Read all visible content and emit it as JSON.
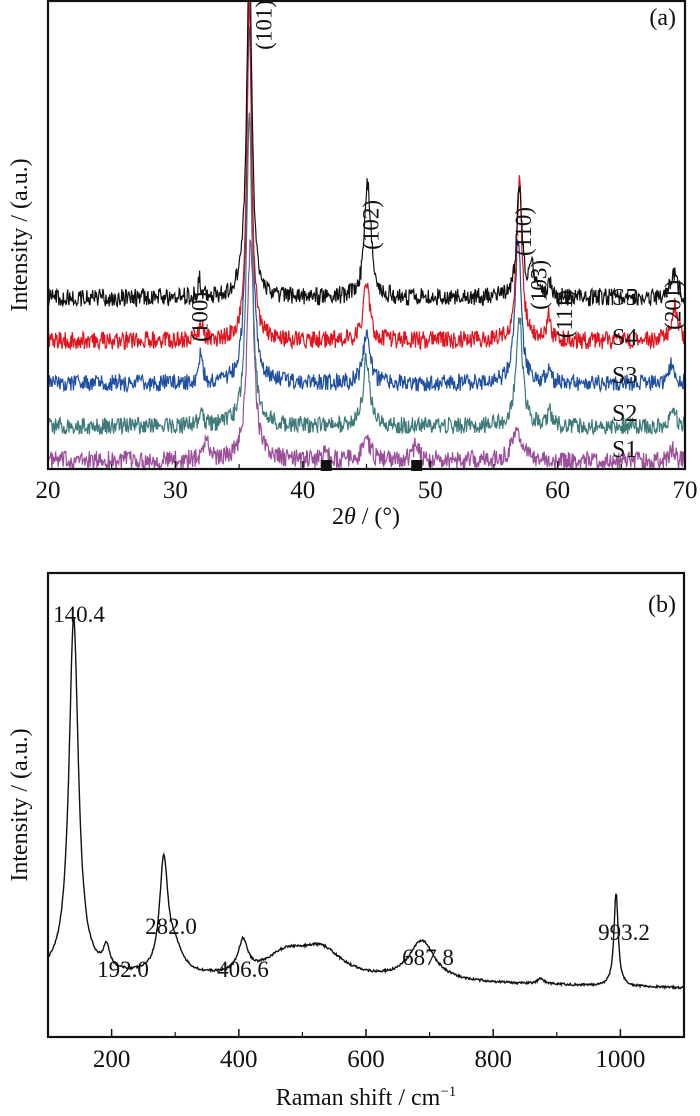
{
  "chart_data": [
    {
      "type": "line",
      "panel": "(a)",
      "xlabel_prefix": "2",
      "xlabel_theta": "θ",
      "xlabel_suffix": " / (°)",
      "ylabel": "Intensity / (a.u.)",
      "xlim": [
        20,
        70
      ],
      "xticks": [
        20,
        30,
        40,
        50,
        60,
        70
      ],
      "xticks_minor": [
        25,
        35,
        45,
        55,
        65
      ],
      "ylim": [
        0,
        100
      ],
      "y_ticks_shown": false,
      "grid": false,
      "series": [
        {
          "name": "S1",
          "color": "#9b4f9b",
          "offset": 2,
          "noise": 2.2,
          "peaks": [
            [
              32.4,
              5,
              0.25
            ],
            [
              35.9,
              52,
              0.3
            ],
            [
              41.8,
              3,
              0.15
            ],
            [
              45.0,
              5,
              0.35
            ],
            [
              48.9,
              4,
              0.3
            ],
            [
              56.8,
              8,
              0.4
            ],
            [
              69.0,
              3,
              0.2
            ]
          ]
        },
        {
          "name": "S2",
          "color": "#3f7a7a",
          "offset": 10,
          "noise": 2.0,
          "peaks": [
            [
              32.0,
              4,
              0.18
            ],
            [
              35.8,
              75,
              0.25
            ],
            [
              45.0,
              16,
              0.3
            ],
            [
              57.0,
              26,
              0.3
            ],
            [
              59.4,
              3,
              0.2
            ],
            [
              69.1,
              5,
              0.2
            ]
          ]
        },
        {
          "name": "S3",
          "color": "#1f4fa0",
          "offset": 20,
          "noise": 2.0,
          "peaks": [
            [
              32.0,
              7,
              0.15
            ],
            [
              35.8,
              85,
              0.25
            ],
            [
              45.0,
              12,
              0.3
            ],
            [
              56.9,
              34,
              0.28
            ],
            [
              59.3,
              3,
              0.2
            ],
            [
              69.0,
              5,
              0.25
            ]
          ]
        },
        {
          "name": "S4",
          "color": "#e0141e",
          "offset": 30,
          "noise": 2.1,
          "peaks": [
            [
              32.0,
              4,
              0.18
            ],
            [
              35.8,
              81,
              0.22
            ],
            [
              45.0,
              14,
              0.28
            ],
            [
              57.0,
              37,
              0.25
            ],
            [
              59.3,
              6,
              0.18
            ],
            [
              69.2,
              8,
              0.3
            ]
          ]
        },
        {
          "name": "S5",
          "color": "#111111",
          "offset": 40,
          "noise": 2.1,
          "peaks": [
            [
              31.9,
              4,
              0.15
            ],
            [
              35.8,
              81,
              0.25
            ],
            [
              45.1,
              27,
              0.3
            ],
            [
              57.0,
              26,
              0.25
            ],
            [
              58.0,
              6,
              0.25
            ],
            [
              59.4,
              3,
              0.2
            ],
            [
              69.1,
              6,
              0.3
            ]
          ]
        }
      ],
      "peak_labels": [
        {
          "text": "(100)",
          "x": 31.9
        },
        {
          "text": "(101)",
          "x": 36.9
        },
        {
          "text": "(102)",
          "x": 45.3
        },
        {
          "text": "(110)",
          "x": 57.3
        },
        {
          "text": "(103)",
          "x": 58.5
        },
        {
          "text": "(111)",
          "x": 60.5
        },
        {
          "text": "(201)",
          "x": 69.0
        }
      ],
      "impurity_markers": [
        {
          "x": 41.8,
          "symbol": "filled-square"
        },
        {
          "x": 48.9,
          "symbol": "filled-square"
        }
      ]
    },
    {
      "type": "line",
      "panel": "(b)",
      "xlabel": "Raman shift / cm",
      "xlabel_sup": "−1",
      "ylabel": "Intensity / (a.u.)",
      "xlim": [
        100,
        1100
      ],
      "xticks": [
        200,
        400,
        600,
        800,
        1000
      ],
      "xticks_minor": [
        300,
        500,
        700,
        900
      ],
      "ylim": [
        0,
        100
      ],
      "y_ticks_shown": false,
      "grid": false,
      "series": [
        {
          "name": "Raman",
          "color": "#111111",
          "baseline": 14,
          "peaks": [
            [
              140.4,
              80,
              9
            ],
            [
              192.0,
              5,
              6
            ],
            [
              282.0,
              25,
              8
            ],
            [
              300,
              5,
              14
            ],
            [
              406.6,
              7,
              9
            ],
            [
              475,
              5,
              40
            ],
            [
              530,
              6,
              40
            ],
            [
              687.8,
              9,
              24
            ],
            [
              875,
              1.2,
              6
            ],
            [
              993.2,
              21,
              4
            ]
          ]
        }
      ],
      "peak_labels": [
        {
          "text": "140.4",
          "x": 140.4
        },
        {
          "text": "192.0",
          "x": 192.0
        },
        {
          "text": "282.0",
          "x": 282.0
        },
        {
          "text": "406.6",
          "x": 406.6
        },
        {
          "text": "687.8",
          "x": 687.8
        },
        {
          "text": "993.2",
          "x": 993.2
        }
      ]
    }
  ]
}
